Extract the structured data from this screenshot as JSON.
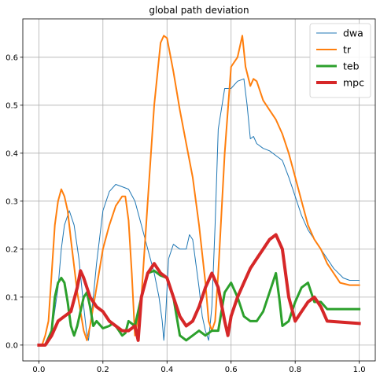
{
  "chart_data": {
    "type": "line",
    "title": "global path deviation",
    "xlabel": "",
    "ylabel": "",
    "xlim": [
      -0.05,
      1.05
    ],
    "ylim": [
      -0.033,
      0.68
    ],
    "xticks": [
      0.0,
      0.2,
      0.4,
      0.6,
      0.8,
      1.0
    ],
    "xtick_labels": [
      "0.0",
      "0.2",
      "0.4",
      "0.6",
      "0.8",
      "1.0"
    ],
    "yticks": [
      0.0,
      0.1,
      0.2,
      0.3,
      0.4,
      0.5,
      0.6
    ],
    "ytick_labels": [
      "0.0",
      "0.1",
      "0.2",
      "0.3",
      "0.4",
      "0.5",
      "0.6"
    ],
    "grid": true,
    "legend_position": "top-right",
    "series": [
      {
        "name": "dwa",
        "color": "#1f77b4",
        "width": 1,
        "x": [
          0.0,
          0.02,
          0.035,
          0.045,
          0.06,
          0.07,
          0.08,
          0.095,
          0.11,
          0.125,
          0.14,
          0.15,
          0.155,
          0.17,
          0.18,
          0.2,
          0.22,
          0.24,
          0.26,
          0.28,
          0.3,
          0.32,
          0.34,
          0.36,
          0.375,
          0.385,
          0.39,
          0.395,
          0.405,
          0.42,
          0.44,
          0.46,
          0.47,
          0.48,
          0.5,
          0.51,
          0.52,
          0.53,
          0.54,
          0.55,
          0.56,
          0.58,
          0.6,
          0.62,
          0.64,
          0.65,
          0.66,
          0.67,
          0.68,
          0.7,
          0.72,
          0.74,
          0.76,
          0.78,
          0.8,
          0.82,
          0.84,
          0.86,
          0.88,
          0.9,
          0.92,
          0.95,
          0.97,
          1.0
        ],
        "y": [
          0.0,
          0.0,
          0.02,
          0.05,
          0.12,
          0.2,
          0.25,
          0.28,
          0.25,
          0.18,
          0.08,
          0.02,
          0.01,
          0.1,
          0.17,
          0.28,
          0.32,
          0.335,
          0.33,
          0.325,
          0.3,
          0.25,
          0.2,
          0.15,
          0.1,
          0.05,
          0.01,
          0.05,
          0.18,
          0.21,
          0.2,
          0.2,
          0.23,
          0.22,
          0.12,
          0.06,
          0.03,
          0.01,
          0.08,
          0.25,
          0.45,
          0.535,
          0.535,
          0.55,
          0.555,
          0.5,
          0.43,
          0.435,
          0.42,
          0.41,
          0.405,
          0.395,
          0.385,
          0.35,
          0.31,
          0.27,
          0.24,
          0.22,
          0.2,
          0.18,
          0.16,
          0.14,
          0.135,
          0.135
        ]
      },
      {
        "name": "tr",
        "color": "#ff7f0e",
        "width": 2,
        "x": [
          0.0,
          0.01,
          0.02,
          0.03,
          0.04,
          0.05,
          0.06,
          0.07,
          0.08,
          0.09,
          0.1,
          0.12,
          0.14,
          0.15,
          0.16,
          0.18,
          0.2,
          0.22,
          0.24,
          0.26,
          0.27,
          0.28,
          0.29,
          0.3,
          0.32,
          0.34,
          0.36,
          0.38,
          0.39,
          0.4,
          0.42,
          0.44,
          0.46,
          0.48,
          0.5,
          0.52,
          0.53,
          0.54,
          0.55,
          0.56,
          0.58,
          0.6,
          0.62,
          0.635,
          0.645,
          0.66,
          0.67,
          0.68,
          0.7,
          0.72,
          0.74,
          0.76,
          0.78,
          0.8,
          0.82,
          0.84,
          0.86,
          0.88,
          0.9,
          0.92,
          0.94,
          0.97,
          1.0
        ],
        "y": [
          0.0,
          0.0,
          0.02,
          0.05,
          0.15,
          0.25,
          0.3,
          0.325,
          0.31,
          0.28,
          0.22,
          0.11,
          0.03,
          0.01,
          0.04,
          0.12,
          0.2,
          0.25,
          0.29,
          0.31,
          0.31,
          0.26,
          0.15,
          0.02,
          0.1,
          0.3,
          0.5,
          0.63,
          0.645,
          0.64,
          0.57,
          0.49,
          0.42,
          0.35,
          0.25,
          0.13,
          0.05,
          0.03,
          0.05,
          0.15,
          0.4,
          0.58,
          0.6,
          0.645,
          0.58,
          0.54,
          0.555,
          0.55,
          0.51,
          0.49,
          0.47,
          0.44,
          0.4,
          0.35,
          0.3,
          0.25,
          0.22,
          0.2,
          0.17,
          0.15,
          0.13,
          0.125,
          0.125
        ]
      },
      {
        "name": "teb",
        "color": "#2ca02c",
        "width": 3,
        "x": [
          0.0,
          0.02,
          0.04,
          0.05,
          0.06,
          0.07,
          0.08,
          0.09,
          0.1,
          0.11,
          0.12,
          0.13,
          0.14,
          0.15,
          0.16,
          0.17,
          0.18,
          0.2,
          0.22,
          0.23,
          0.24,
          0.25,
          0.26,
          0.27,
          0.28,
          0.3,
          0.32,
          0.34,
          0.36,
          0.37,
          0.38,
          0.4,
          0.42,
          0.44,
          0.46,
          0.48,
          0.5,
          0.52,
          0.54,
          0.56,
          0.58,
          0.6,
          0.62,
          0.64,
          0.66,
          0.68,
          0.7,
          0.72,
          0.74,
          0.75,
          0.76,
          0.78,
          0.8,
          0.82,
          0.84,
          0.85,
          0.86,
          0.88,
          0.9,
          1.0
        ],
        "y": [
          0.0,
          0.0,
          0.03,
          0.1,
          0.13,
          0.14,
          0.13,
          0.09,
          0.04,
          0.02,
          0.04,
          0.07,
          0.1,
          0.11,
          0.08,
          0.04,
          0.05,
          0.035,
          0.04,
          0.045,
          0.04,
          0.03,
          0.02,
          0.025,
          0.05,
          0.04,
          0.1,
          0.15,
          0.155,
          0.15,
          0.145,
          0.14,
          0.1,
          0.02,
          0.01,
          0.02,
          0.03,
          0.02,
          0.03,
          0.03,
          0.11,
          0.13,
          0.1,
          0.06,
          0.05,
          0.05,
          0.07,
          0.11,
          0.15,
          0.1,
          0.04,
          0.05,
          0.09,
          0.12,
          0.13,
          0.11,
          0.09,
          0.09,
          0.075,
          0.075
        ]
      },
      {
        "name": "mpc",
        "color": "#d62728",
        "width": 4,
        "x": [
          0.0,
          0.02,
          0.04,
          0.06,
          0.08,
          0.1,
          0.12,
          0.13,
          0.14,
          0.16,
          0.18,
          0.2,
          0.22,
          0.24,
          0.26,
          0.28,
          0.3,
          0.31,
          0.32,
          0.34,
          0.36,
          0.38,
          0.4,
          0.42,
          0.44,
          0.46,
          0.48,
          0.5,
          0.52,
          0.54,
          0.56,
          0.58,
          0.59,
          0.6,
          0.62,
          0.64,
          0.66,
          0.68,
          0.7,
          0.72,
          0.74,
          0.76,
          0.78,
          0.8,
          0.82,
          0.84,
          0.86,
          0.88,
          0.9,
          1.0
        ],
        "y": [
          0.0,
          0.0,
          0.02,
          0.05,
          0.06,
          0.07,
          0.12,
          0.155,
          0.14,
          0.1,
          0.08,
          0.07,
          0.05,
          0.04,
          0.03,
          0.03,
          0.04,
          0.01,
          0.1,
          0.15,
          0.17,
          0.15,
          0.14,
          0.1,
          0.06,
          0.04,
          0.05,
          0.08,
          0.12,
          0.15,
          0.12,
          0.05,
          0.02,
          0.06,
          0.1,
          0.13,
          0.16,
          0.18,
          0.2,
          0.22,
          0.23,
          0.2,
          0.1,
          0.05,
          0.07,
          0.09,
          0.1,
          0.08,
          0.05,
          0.045
        ]
      }
    ]
  }
}
